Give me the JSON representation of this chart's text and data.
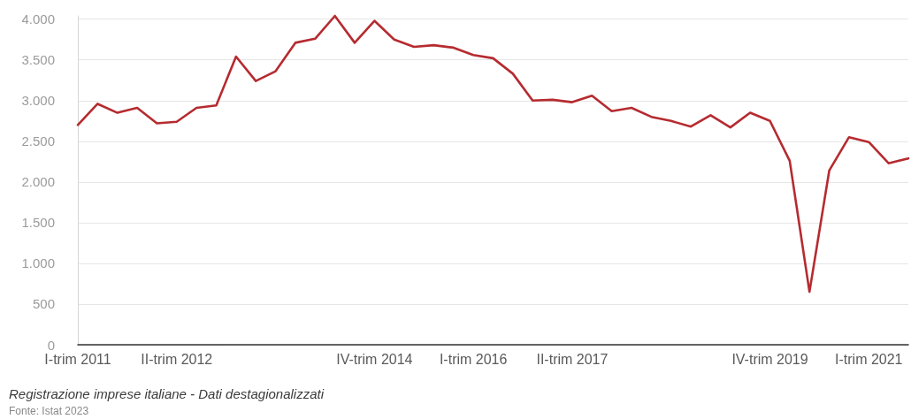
{
  "chart_data": {
    "type": "line",
    "categories": [
      "I-trim 2011",
      null,
      null,
      null,
      null,
      "II-trim 2012",
      null,
      null,
      null,
      null,
      null,
      null,
      null,
      null,
      null,
      "IV-trim 2014",
      null,
      null,
      null,
      null,
      "I-trim 2016",
      null,
      null,
      null,
      null,
      "II-trim 2017",
      null,
      null,
      null,
      null,
      null,
      null,
      null,
      null,
      null,
      "IV-trim 2019",
      null,
      null,
      null,
      null,
      "I-trim 2021",
      null,
      null
    ],
    "series": [
      {
        "color": "#b52b30",
        "values": [
          2700,
          2960,
          2850,
          2910,
          2720,
          2740,
          2910,
          2940,
          3540,
          3240,
          3360,
          3710,
          3760,
          4040,
          3710,
          3980,
          3750,
          3660,
          3680,
          3650,
          3560,
          3520,
          3330,
          3000,
          3010,
          2980,
          3060,
          2870,
          2910,
          2800,
          2750,
          2680,
          2820,
          2670,
          2850,
          2750,
          2260,
          650,
          2140,
          2550,
          2490,
          2230,
          2290
        ]
      }
    ],
    "ylim": [
      0,
      4040
    ],
    "yticks": [
      0,
      {
        "value": 500,
        "label": "500"
      },
      {
        "value": 1000,
        "label": "1.000"
      },
      {
        "value": 1500,
        "label": "1.500"
      },
      {
        "value": 2000,
        "label": "2.000"
      },
      {
        "value": 2500,
        "label": "2.500"
      },
      {
        "value": 3000,
        "label": "3.000"
      },
      {
        "value": 3500,
        "label": "3.500"
      },
      {
        "value": 4000,
        "label": "4.000"
      }
    ],
    "grid": "y",
    "marker": "none",
    "annotations": [
      "Registrazione imprese italiane - Dati destagionalizzati",
      "Fonte: Istat 2023"
    ]
  }
}
